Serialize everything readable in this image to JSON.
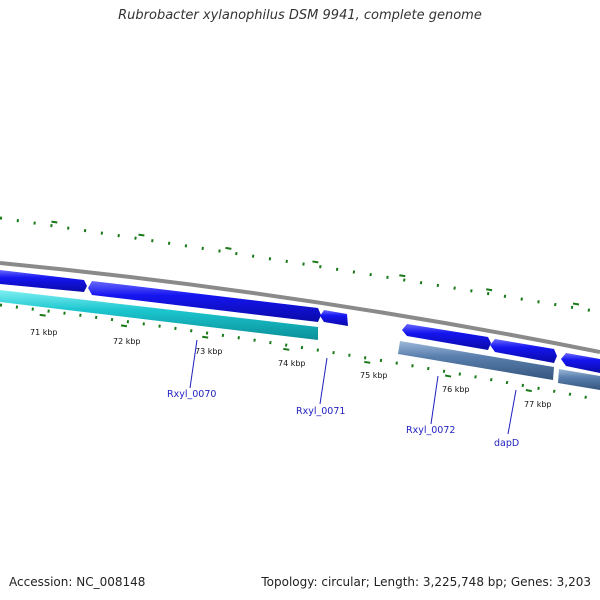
{
  "title": "Rubrobacter xylanophilus DSM 9941, complete genome",
  "footer": {
    "accession": "Accession: NC_008148",
    "summary": "Topology: circular; Length: 3,225,748 bp; Genes: 3,203"
  },
  "colors": {
    "tick": "#1a7a1a",
    "backbone": "#8a8a8a",
    "forward_gene": "#1010e0",
    "cyan_gene": "#19c8d0",
    "steel_gene": "#5a7fae",
    "label": "#1f1fbf"
  },
  "ruler": {
    "unit": "kbp",
    "labels": [
      "71 kbp",
      "72 kbp",
      "73 kbp",
      "74 kbp",
      "75 kbp",
      "76 kbp",
      "77 kbp"
    ]
  },
  "genes": [
    {
      "name": "",
      "color": "forward_gene",
      "strand": "forward"
    },
    {
      "name": "",
      "color": "forward_gene",
      "strand": "forward"
    },
    {
      "name": "",
      "color": "forward_gene",
      "strand": "forward"
    },
    {
      "name": "",
      "color": "forward_gene",
      "strand": "forward"
    },
    {
      "name": "",
      "color": "forward_gene",
      "strand": "forward"
    },
    {
      "name": "",
      "color": "forward_gene",
      "strand": "forward"
    },
    {
      "name": "Rxyl_0070",
      "color": "cyan_gene",
      "strand": "reverse"
    },
    {
      "name": "Rxyl_0072",
      "color": "steel_gene",
      "strand": "reverse"
    },
    {
      "name": "",
      "color": "steel_gene",
      "strand": "reverse"
    }
  ],
  "labels": [
    "Rxyl_0070",
    "Rxyl_0071",
    "Rxyl_0072",
    "dapD"
  ]
}
